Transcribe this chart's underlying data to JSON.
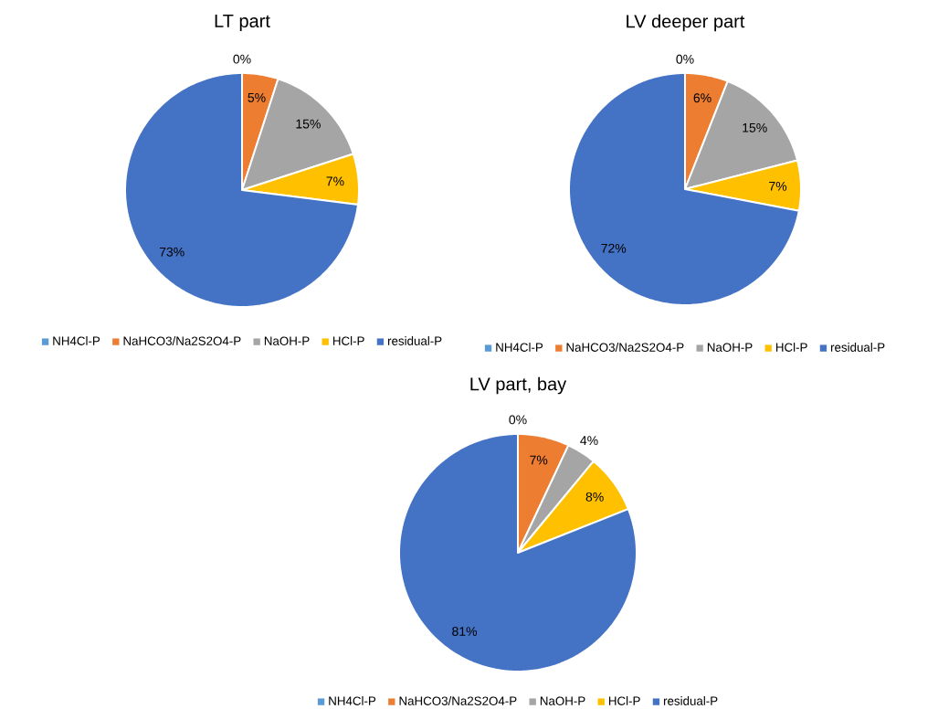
{
  "chart_data": [
    {
      "type": "pie",
      "title": "LT part",
      "categories": [
        "NH4Cl-P",
        "NaHCO3/Na2S2O4-P",
        "NaOH-P",
        "HCl-P",
        "residual-P"
      ],
      "values": [
        0,
        5,
        15,
        7,
        73
      ],
      "value_labels": [
        "0%",
        "5%",
        "15%",
        "7%",
        "73%"
      ],
      "colors": [
        "#5b9bd5",
        "#ed7d31",
        "#a5a5a5",
        "#ffc000",
        "#4472c4"
      ],
      "legend": "bottom"
    },
    {
      "type": "pie",
      "title": "LV deeper part",
      "categories": [
        "NH4Cl-P",
        "NaHCO3/Na2S2O4-P",
        "NaOH-P",
        "HCl-P",
        "residual-P"
      ],
      "values": [
        0,
        6,
        15,
        7,
        72
      ],
      "value_labels": [
        "0%",
        "6%",
        "15%",
        "7%",
        "72%"
      ],
      "colors": [
        "#5b9bd5",
        "#ed7d31",
        "#a5a5a5",
        "#ffc000",
        "#4472c4"
      ],
      "legend": "bottom"
    },
    {
      "type": "pie",
      "title": "LV part, bay",
      "categories": [
        "NH4Cl-P",
        "NaHCO3/Na2S2O4-P",
        "NaOH-P",
        "HCl-P",
        "residual-P"
      ],
      "values": [
        0,
        7,
        4,
        8,
        81
      ],
      "value_labels": [
        "0%",
        "7%",
        "4%",
        "8%",
        "81%"
      ],
      "colors": [
        "#5b9bd5",
        "#ed7d31",
        "#a5a5a5",
        "#ffc000",
        "#4472c4"
      ],
      "legend": "bottom"
    }
  ]
}
